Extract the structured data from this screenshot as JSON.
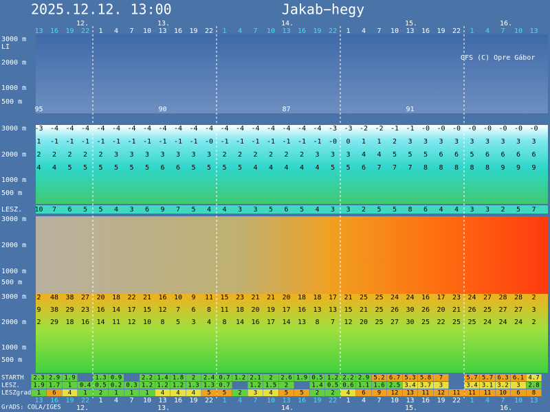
{
  "header": {
    "datetime": "2025.12.12. 13:00",
    "location": "Jakab−hegy"
  },
  "days": [
    "12.",
    "13.",
    "14.",
    "15.",
    "16."
  ],
  "hours": [
    13,
    16,
    19,
    22,
    1,
    4,
    7,
    10,
    13,
    16,
    19,
    22,
    1,
    4,
    7,
    10,
    13,
    16,
    19,
    22,
    1,
    4,
    7,
    10,
    13,
    16,
    19,
    22,
    1,
    4,
    7,
    10,
    13
  ],
  "credit": "GFS (C) Opre Gábor",
  "footer": "GrADS: COLA/IGES",
  "cloud_panel": {
    "altitudes": [
      "3000 m",
      "LI",
      "2000 m",
      "1000 m",
      "500 m"
    ],
    "li_values": [
      "95",
      "90",
      "87",
      "91"
    ]
  },
  "temp_panel": {
    "altitudes": [
      "3000 m",
      "2000 m",
      "1000 m",
      "500 m"
    ],
    "rows": [
      [
        "-3",
        "-4",
        "-4",
        "-4",
        "-4",
        "-4",
        "-4",
        "-4",
        "-4",
        "-4",
        "-4",
        "-4",
        "-4",
        "-4",
        "-4",
        "-4",
        "-4",
        "-4",
        "-4",
        "-3",
        "-3",
        "-2",
        "-2",
        "-1",
        "-1",
        "-0",
        "-0",
        "-0",
        "-0",
        "-0",
        "-0",
        "-0",
        "-0"
      ],
      [
        "1",
        "-1",
        "-1",
        "-1",
        "-1",
        "-1",
        "-1",
        "-1",
        "-1",
        "-1",
        "-1",
        "-0",
        "-1",
        "-1",
        "-1",
        "-1",
        "-1",
        "-1",
        "-1",
        "-0",
        "0",
        "1",
        "1",
        "2",
        "3",
        "3",
        "3",
        "3",
        "3",
        "3",
        "3",
        "3",
        "3"
      ],
      [
        "2",
        "2",
        "2",
        "2",
        "2",
        "3",
        "3",
        "3",
        "3",
        "3",
        "3",
        "3",
        "2",
        "2",
        "2",
        "2",
        "2",
        "2",
        "3",
        "3",
        "3",
        "4",
        "4",
        "5",
        "5",
        "5",
        "6",
        "6",
        "5",
        "6",
        "6",
        "6",
        "6"
      ],
      [
        "4",
        "4",
        "5",
        "5",
        "5",
        "5",
        "5",
        "5",
        "6",
        "6",
        "5",
        "5",
        "5",
        "5",
        "4",
        "4",
        "4",
        "4",
        "4",
        "5",
        "5",
        "6",
        "7",
        "7",
        "7",
        "8",
        "8",
        "8",
        "8",
        "8",
        "9",
        "9",
        "9"
      ]
    ]
  },
  "lesz_row": {
    "label": "LESZ.",
    "values": [
      "10",
      "7",
      "6",
      "5",
      "5",
      "4",
      "3",
      "6",
      "9",
      "7",
      "5",
      "4",
      "4",
      "3",
      "3",
      "5",
      "6",
      "5",
      "4",
      "3",
      "3",
      "2",
      "5",
      "5",
      "8",
      "6",
      "4",
      "4",
      "3",
      "3",
      "2",
      "5",
      "7"
    ]
  },
  "wind_panel": {
    "altitudes": [
      "3000 m",
      "2000 m",
      "1000 m",
      "500 m"
    ]
  },
  "thermal_panel": {
    "altitudes": [
      "3000 m",
      "2000 m",
      "1000 m",
      "500 m"
    ],
    "rows": [
      [
        "2",
        "48",
        "38",
        "27",
        "20",
        "18",
        "22",
        "21",
        "16",
        "10",
        "9",
        "11",
        "15",
        "23",
        "21",
        "21",
        "20",
        "18",
        "18",
        "17",
        "21",
        "25",
        "25",
        "24",
        "24",
        "16",
        "17",
        "23",
        "24",
        "27",
        "28",
        "28",
        "2"
      ],
      [
        "9",
        "38",
        "29",
        "23",
        "16",
        "14",
        "17",
        "15",
        "12",
        "7",
        "6",
        "8",
        "11",
        "18",
        "20",
        "19",
        "17",
        "16",
        "13",
        "13",
        "15",
        "21",
        "25",
        "26",
        "30",
        "26",
        "20",
        "21",
        "26",
        "25",
        "27",
        "27",
        "3"
      ],
      [
        "2",
        "29",
        "18",
        "16",
        "14",
        "11",
        "12",
        "10",
        "8",
        "5",
        "3",
        "4",
        "8",
        "14",
        "16",
        "17",
        "14",
        "13",
        "8",
        "7",
        "12",
        "20",
        "25",
        "27",
        "30",
        "25",
        "22",
        "25",
        "25",
        "24",
        "24",
        "24",
        "2"
      ]
    ]
  },
  "bottom_rows": [
    {
      "label": "STARTH",
      "values": [
        "2.3",
        "2.9",
        "1.9",
        "",
        "1.3",
        "0.9",
        "",
        "2.2",
        "1.4",
        "1.8",
        "2",
        "2.4",
        "0.7",
        "1.2",
        "2.1",
        "2",
        "2.6",
        "1.9",
        "0.5",
        "1.2",
        "2.2",
        "2.9",
        "5.2",
        "6.7",
        "5.3",
        "5.8",
        "7",
        "",
        "5.7",
        "5.7",
        "6.3",
        "6.1",
        "4.7"
      ]
    },
    {
      "label": "LESZ.",
      "values": [
        "1.9",
        "1.7",
        "1",
        "0.4",
        "0.5",
        "0.2",
        "0.3",
        "1.2",
        "1.2",
        "1.2",
        "1.3",
        "1.3",
        "0.7",
        "",
        "1.2",
        "1.5",
        "2",
        "",
        "1.4",
        "0.5",
        "0.6",
        "1.1",
        "1.6",
        "2.5",
        "3.4",
        "3.7",
        "3",
        "",
        "3.4",
        "3.1",
        "3.2",
        "3",
        "2.8"
      ]
    },
    {
      "label": "LESZgrad",
      "values": [
        "1",
        "6",
        "4",
        "1",
        "2",
        "1",
        "1",
        "1",
        "4",
        "4",
        "4",
        "5",
        "5",
        "2",
        "3",
        "4",
        "5",
        "5",
        "2",
        "2",
        "4",
        "6",
        "9",
        "12",
        "13",
        "11",
        "12",
        "11",
        "11",
        "11",
        "10",
        "6",
        "8"
      ]
    }
  ]
}
